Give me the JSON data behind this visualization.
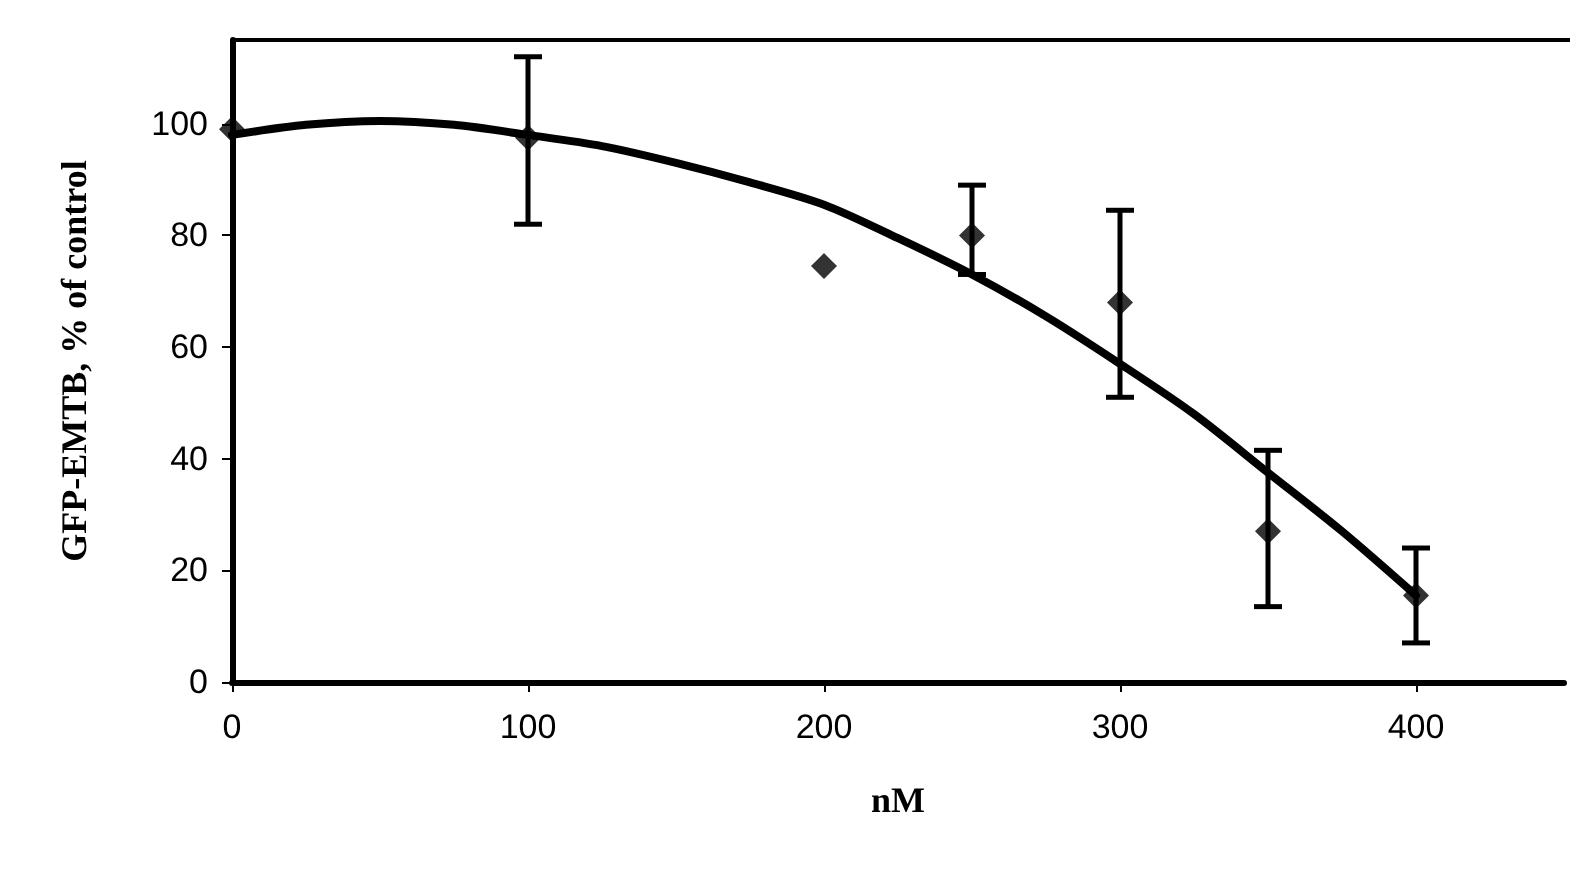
{
  "chart_data": {
    "type": "scatter",
    "xlabel": "nM",
    "ylabel": "GFP-EMTB, % of control",
    "xlim": [
      0,
      450
    ],
    "xticks": [
      0,
      100,
      200,
      300,
      400
    ],
    "ylim": [
      0,
      115
    ],
    "yticks": [
      0,
      20,
      40,
      60,
      80,
      100
    ],
    "grid": false,
    "series": [
      {
        "type": "scatter",
        "color": "#000000",
        "marker": "diamond",
        "x": [
          0,
          100,
          200,
          250,
          300,
          350,
          400
        ],
        "values": [
          99,
          97.5,
          74.5,
          80,
          68,
          27,
          15.5
        ],
        "errors": [
          null,
          [
            82,
            112
          ],
          null,
          [
            73,
            89
          ],
          [
            51,
            84.5
          ],
          [
            13.5,
            41.5
          ],
          [
            7,
            24
          ]
        ]
      },
      {
        "type": "line",
        "color": "#000000",
        "marker": "none",
        "line_style": "solid",
        "x": [
          0,
          25,
          50,
          75,
          100,
          125,
          150,
          175,
          200,
          225,
          250,
          275,
          300,
          325,
          350,
          375,
          400
        ],
        "values": [
          98,
          99.8,
          100.5,
          99.8,
          98,
          96,
          93,
          89.5,
          85.5,
          79.5,
          73,
          65.5,
          57,
          48,
          37.5,
          27,
          15.5
        ]
      }
    ]
  }
}
